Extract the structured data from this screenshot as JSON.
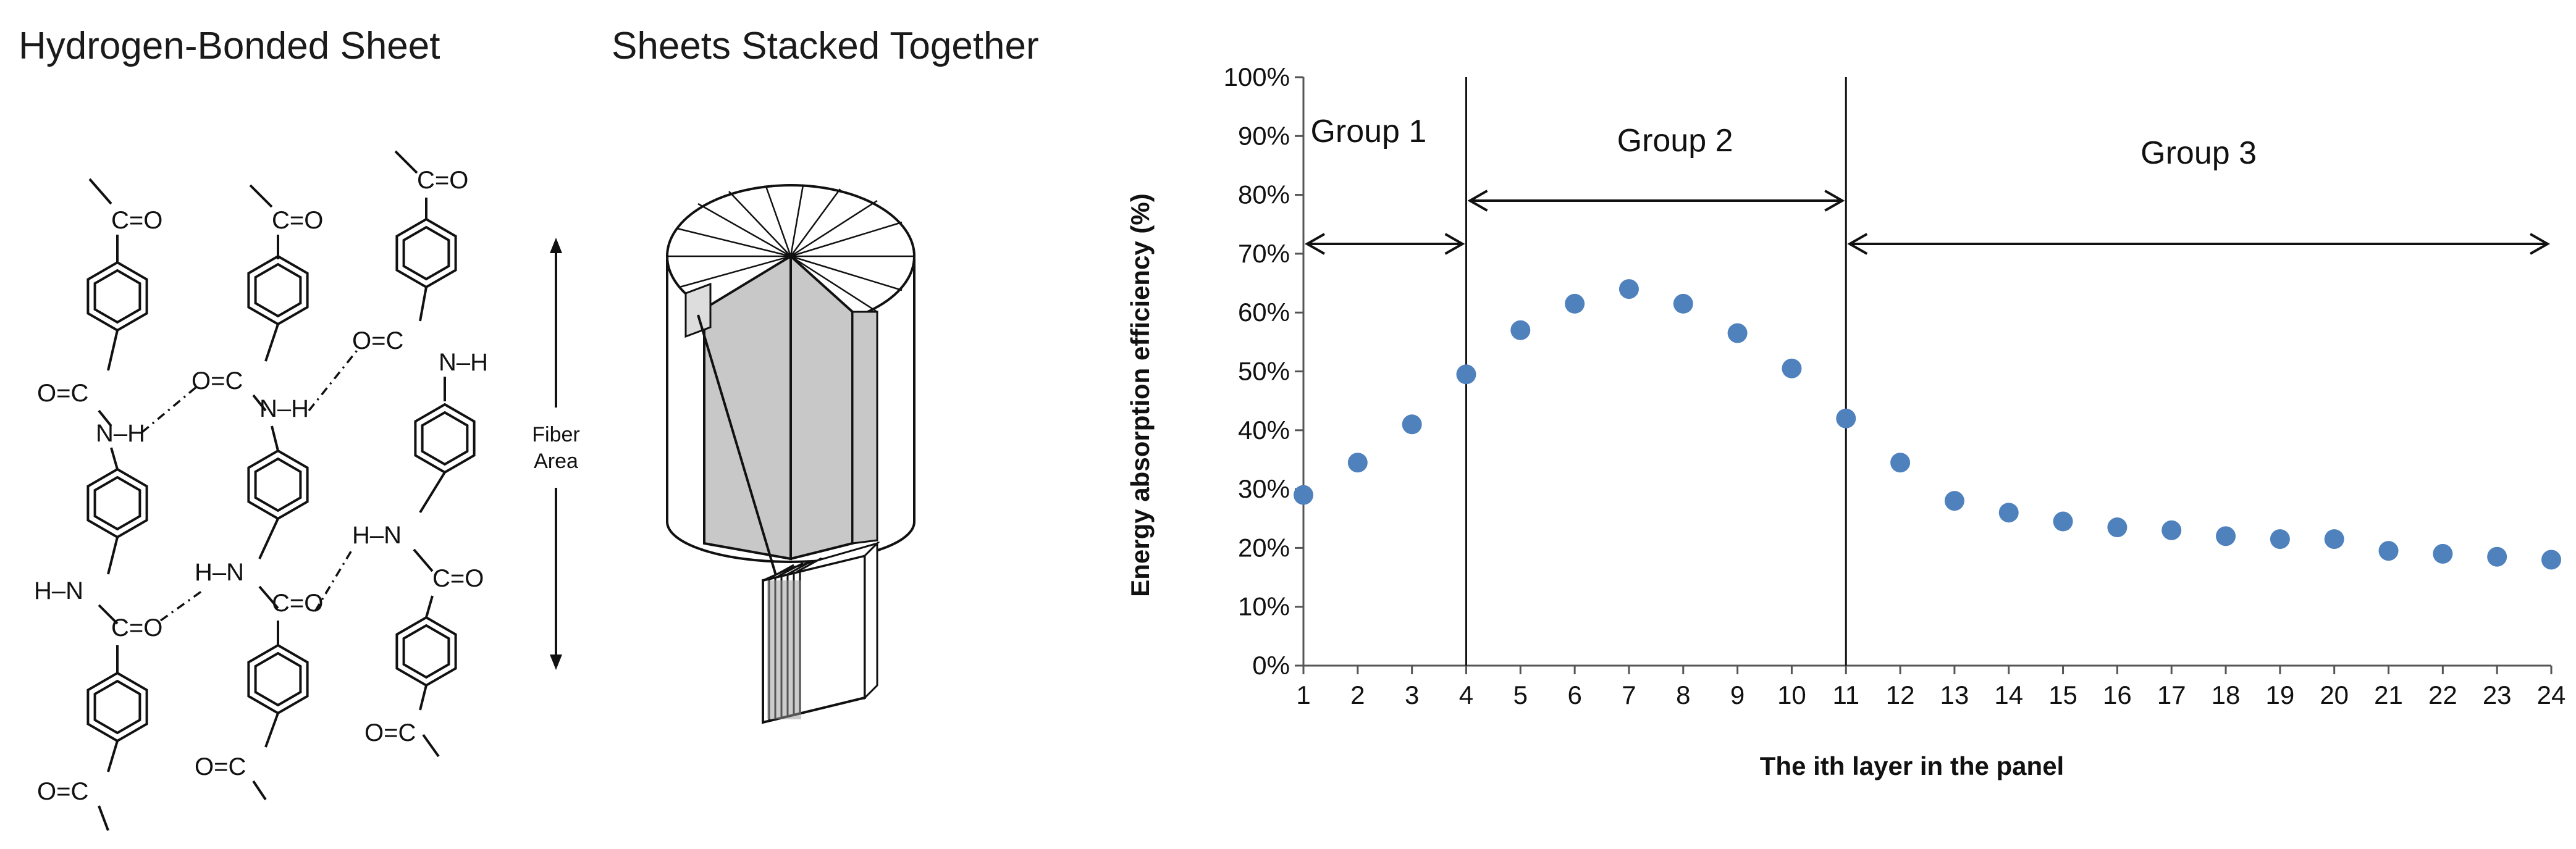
{
  "left_panel": {
    "title": "Hydrogen-Bonded Sheet",
    "labels": {
      "co": "C=O",
      "oc": "O=C",
      "nh": "N–H",
      "hn": "H–N"
    }
  },
  "middle_panel": {
    "title": "Sheets Stacked Together",
    "fiber_line1": "Fiber",
    "fiber_line2": "Area"
  },
  "chart_data": {
    "type": "scatter",
    "xlabel": "The ith layer in the panel",
    "ylabel": "Energy absorption efficiency (%)",
    "x": [
      1,
      2,
      3,
      4,
      5,
      6,
      7,
      8,
      9,
      10,
      11,
      12,
      13,
      14,
      15,
      16,
      17,
      18,
      19,
      20,
      21,
      22,
      23,
      24
    ],
    "values": [
      29,
      34.5,
      41,
      49.5,
      57,
      61.5,
      64,
      61.5,
      56.5,
      50.5,
      42,
      34.5,
      28,
      26,
      24.5,
      23.5,
      23,
      22,
      21.5,
      21.5,
      19.5,
      19,
      18.5,
      18
    ],
    "xlim": [
      1,
      24
    ],
    "ylim": [
      0,
      100
    ],
    "yticks": [
      "0%",
      "10%",
      "20%",
      "30%",
      "40%",
      "50%",
      "60%",
      "70%",
      "80%",
      "90%",
      "100%"
    ],
    "xticks": [
      "1",
      "2",
      "3",
      "4",
      "5",
      "6",
      "7",
      "8",
      "9",
      "10",
      "11",
      "12",
      "13",
      "14",
      "15",
      "16",
      "17",
      "18",
      "19",
      "20",
      "21",
      "22",
      "23",
      "24"
    ],
    "marker_color": "#4f81bd",
    "groups": [
      {
        "label": "Group 1",
        "from": 1,
        "to": 4
      },
      {
        "label": "Group 2",
        "from": 4,
        "to": 11
      },
      {
        "label": "Group 3",
        "from": 11,
        "to": 24
      }
    ]
  }
}
